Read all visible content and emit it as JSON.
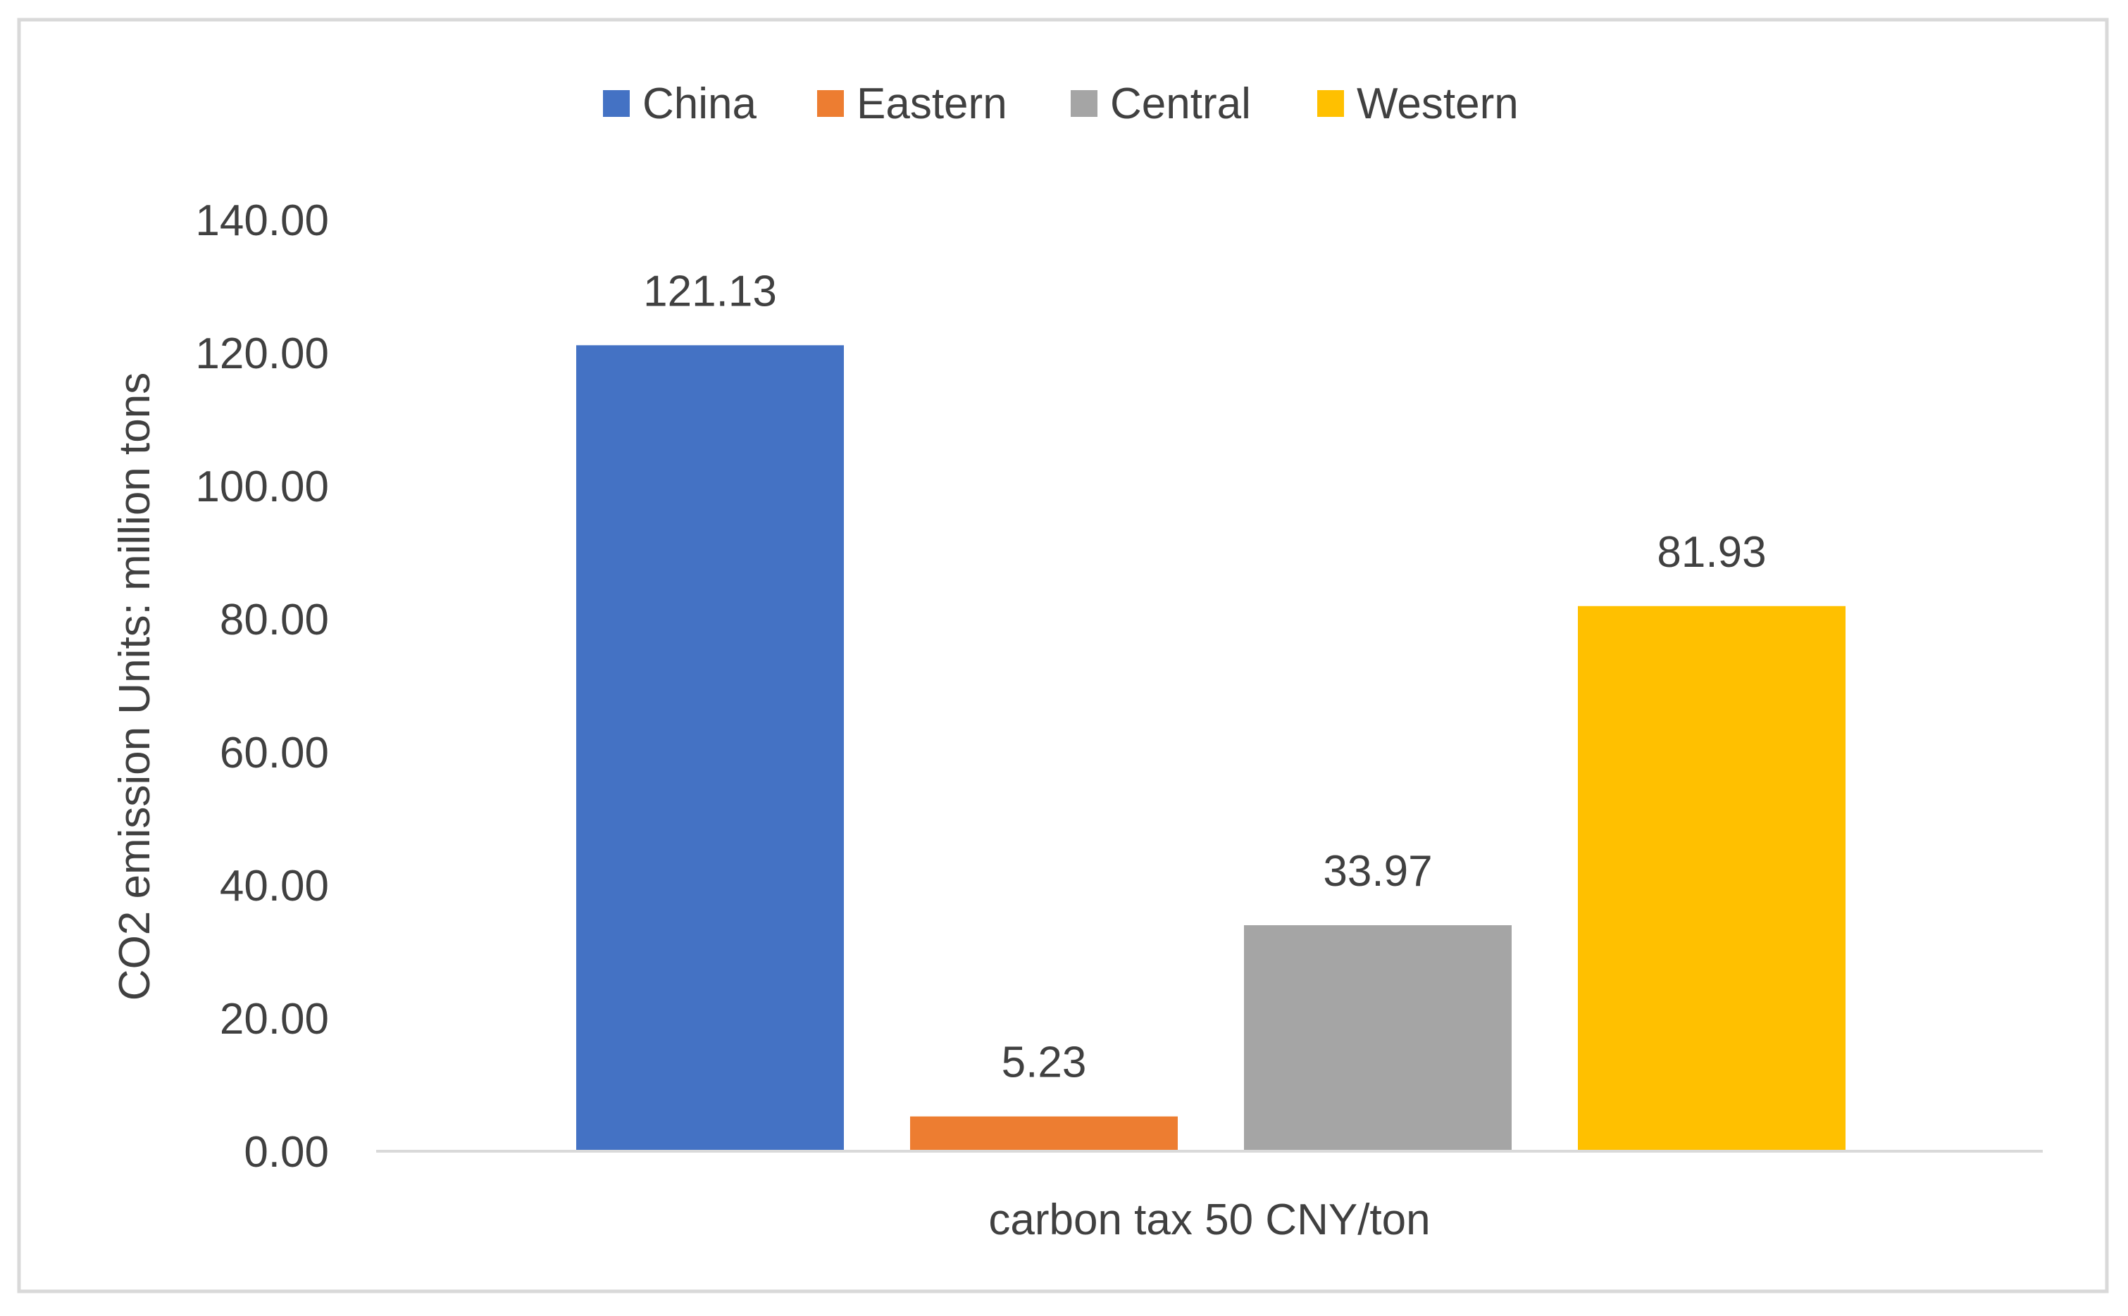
{
  "chart_data": {
    "type": "bar",
    "categories": [
      "carbon tax 50 CNY/ton"
    ],
    "series": [
      {
        "name": "China",
        "values": [
          121.13
        ],
        "color": "#4472C4",
        "label": "121.13"
      },
      {
        "name": "Eastern",
        "values": [
          5.23
        ],
        "color": "#ED7D31",
        "label": "5.23"
      },
      {
        "name": "Central",
        "values": [
          33.97
        ],
        "color": "#A5A5A5",
        "label": "33.97"
      },
      {
        "name": "Western",
        "values": [
          81.93
        ],
        "color": "#FFC000",
        "label": "81.93"
      }
    ],
    "ylabel": "CO2 emission   Units: million tons",
    "xlabel": "",
    "ylim": [
      0,
      140
    ],
    "yticks": [
      "0.00",
      "20.00",
      "40.00",
      "60.00",
      "80.00",
      "100.00",
      "120.00",
      "140.00"
    ],
    "grid": false,
    "legend_position": "top",
    "colors": {
      "axis": "#D9D9D9",
      "border": "#D9D9D9",
      "text": "#404040"
    }
  }
}
